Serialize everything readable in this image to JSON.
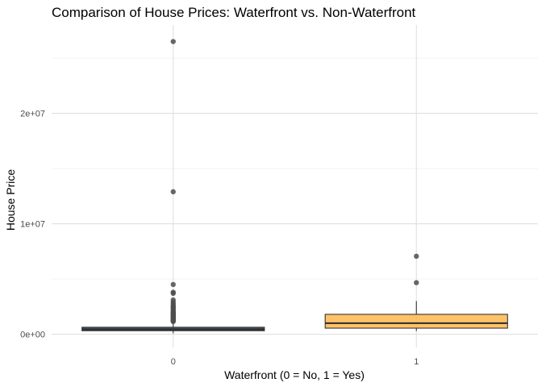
{
  "chart_data": {
    "type": "boxplot",
    "title": "Comparison of House Prices: Waterfront vs. Non-Waterfront",
    "xlabel": "Waterfront (0 = No, 1 = Yes)",
    "ylabel": "House Price",
    "categories": [
      "0",
      "1"
    ],
    "y_ticks": [
      0,
      10000000,
      20000000
    ],
    "y_tick_labels": [
      "0e+00",
      "1e+07",
      "2e+07"
    ],
    "ylim": [
      -1200000,
      28000000
    ],
    "grid": true,
    "legend": "none",
    "boxes": [
      {
        "category": "0",
        "fill": "#2b3f4d",
        "whisker_low": 75000,
        "q1": 315000,
        "median": 440000,
        "q3": 630000,
        "whisker_high": 1110000,
        "outliers": [
          26500000,
          12900000,
          4500000,
          3800000,
          3700000,
          3100000,
          2900000,
          2750000,
          2600000,
          2500000,
          2400000,
          2300000,
          2200000,
          2100000,
          2000000,
          1950000,
          1900000,
          1850000,
          1800000,
          1750000,
          1700000,
          1650000,
          1600000,
          1550000,
          1500000,
          1450000,
          1400000,
          1350000,
          1300000,
          1250000,
          1200000,
          1150000
        ]
      },
      {
        "category": "1",
        "fill": "#ffb74d",
        "whisker_low": 285000,
        "q1": 550000,
        "median": 1000000,
        "q3": 1800000,
        "whisker_high": 3000000,
        "outliers": [
          7060000,
          4670000
        ]
      }
    ]
  }
}
